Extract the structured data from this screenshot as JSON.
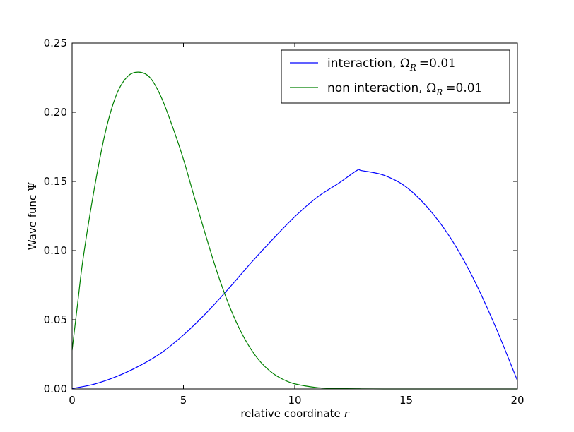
{
  "chart_data": {
    "type": "line",
    "xlabel": "relative coordinate",
    "xlabel_var": "r",
    "ylabel": "Wave func",
    "ylabel_symbol": "Ψ",
    "xlim": [
      0,
      20
    ],
    "ylim": [
      0,
      0.25
    ],
    "x_ticks": [
      0,
      5,
      10,
      15,
      20
    ],
    "x_tick_labels": [
      "0",
      "5",
      "10",
      "15",
      "20"
    ],
    "y_ticks": [
      0,
      0.05,
      0.1,
      0.15,
      0.2,
      0.25
    ],
    "y_tick_labels": [
      "0.00",
      "0.05",
      "0.10",
      "0.15",
      "0.20",
      "0.25"
    ],
    "grid": false,
    "legend_position": "top-right",
    "series": [
      {
        "name": "interaction, Ω_R =0.01",
        "legend_text": "interaction,",
        "legend_math": "Ω",
        "legend_sub": "R",
        "legend_value": "=0.01",
        "color": "#0000ff",
        "x": [
          0,
          1,
          2,
          3,
          4,
          5,
          6,
          7,
          8,
          9,
          10,
          11,
          12,
          12.8,
          13,
          14,
          15,
          16,
          17,
          18,
          19,
          20
        ],
        "values": [
          0.0003,
          0.0035,
          0.009,
          0.0165,
          0.026,
          0.039,
          0.0545,
          0.072,
          0.0905,
          0.108,
          0.1245,
          0.1385,
          0.149,
          0.158,
          0.1578,
          0.1545,
          0.146,
          0.1305,
          0.109,
          0.0805,
          0.0455,
          0.006
        ]
      },
      {
        "name": "non interaction, Ω_R =0.01",
        "legend_text": "non interaction,",
        "legend_math": "Ω",
        "legend_sub": "R",
        "legend_value": "=0.01",
        "color": "#008000",
        "x": [
          0,
          0.25,
          0.5,
          1,
          1.5,
          2,
          2.5,
          3,
          3.5,
          4,
          4.5,
          5,
          5.5,
          6,
          6.5,
          7,
          7.5,
          8,
          8.5,
          9,
          9.5,
          10,
          11,
          12,
          13,
          14,
          15,
          16,
          18,
          20
        ],
        "values": [
          0.028,
          0.062,
          0.095,
          0.145,
          0.186,
          0.213,
          0.226,
          0.229,
          0.225,
          0.211,
          0.19,
          0.166,
          0.138,
          0.111,
          0.085,
          0.0625,
          0.044,
          0.0295,
          0.0188,
          0.0115,
          0.0067,
          0.0037,
          0.001,
          0.0003,
          0.0001,
          0.0,
          0.0,
          0.0,
          0.0,
          0.0
        ]
      }
    ]
  }
}
